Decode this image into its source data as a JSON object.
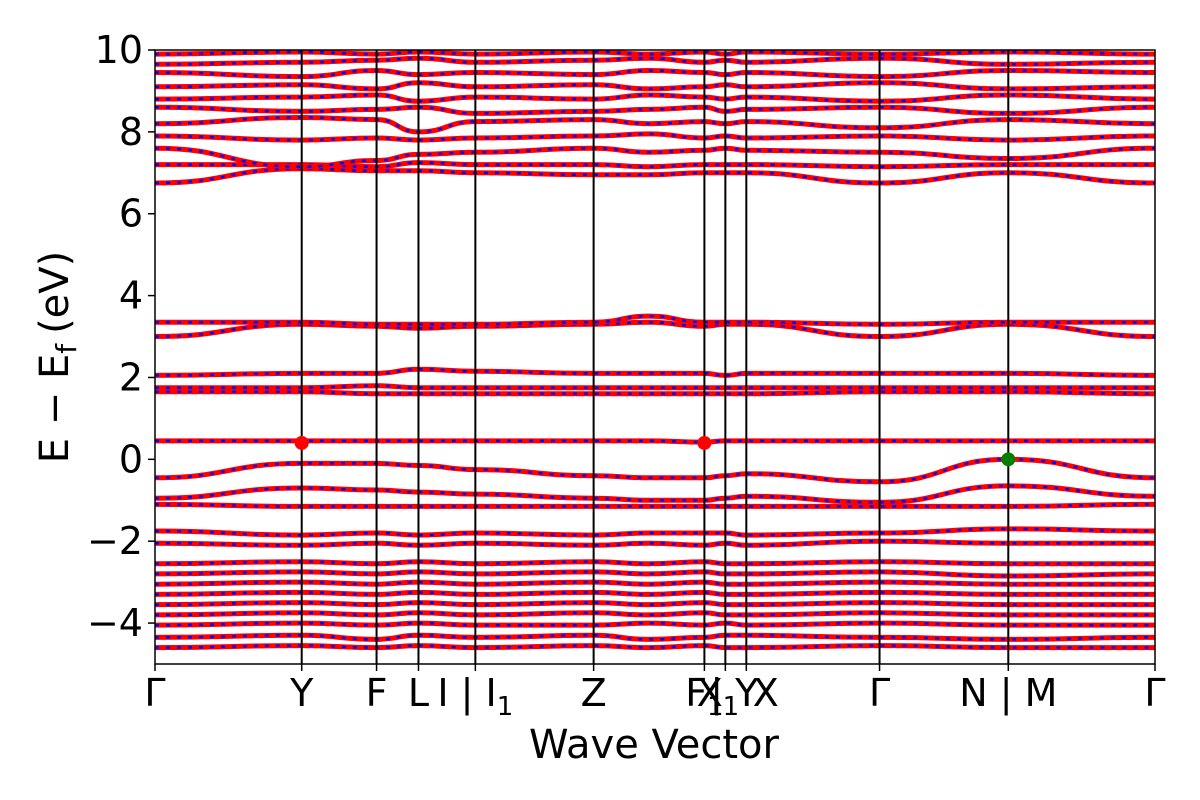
{
  "chart_data": {
    "type": "line",
    "xlabel": "Wave Vector",
    "ylabel": "E − E",
    "ylabel_sub": "f",
    "ylabel_unit": "(eV)",
    "ylim": [
      -5,
      10
    ],
    "yticks": [
      -4,
      -2,
      0,
      2,
      4,
      6,
      8,
      10
    ],
    "ytick_labels": [
      "−4",
      "−2",
      "0",
      "2",
      "4",
      "6",
      "8",
      "10"
    ],
    "xlim": [
      0,
      6.68
    ],
    "kpoints": [
      {
        "label": "Γ",
        "x": 0.0
      },
      {
        "label": "Y",
        "x": 0.98
      },
      {
        "label": "F",
        "x": 1.48
      },
      {
        "label": "L",
        "x": 1.76
      },
      {
        "label": "I | I₁",
        "x": 2.14
      },
      {
        "label": "Z",
        "x": 2.93
      },
      {
        "label": "F₁",
        "x": 3.67
      },
      {
        "label": "Y | X₁",
        "x": 3.81
      },
      {
        "label": "X",
        "x": 3.95
      },
      {
        "label": "Γ",
        "x": 4.84
      },
      {
        "label": "N | M",
        "x": 5.7
      },
      {
        "label": "Γ",
        "x": 6.68
      }
    ],
    "kpoint_tick_text": [
      {
        "text": "Γ",
        "x": 0.0
      },
      {
        "text": "Y",
        "x": 0.98
      },
      {
        "text": "F",
        "x": 1.48
      },
      {
        "text": "L",
        "x": 1.76
      },
      {
        "text": "I | I",
        "sub": "1",
        "x": 2.14
      },
      {
        "text": "Z",
        "x": 2.93
      },
      {
        "text": "F",
        "sub": "1",
        "x": 3.67
      },
      {
        "text": "X",
        "sub": "1",
        "x": 3.76
      },
      {
        "text": "| Y",
        "x": 3.87
      },
      {
        "text": "X",
        "x": 4.08
      },
      {
        "text": "Γ",
        "x": 4.84
      },
      {
        "text": "N | M",
        "x": 5.7
      },
      {
        "text": "Γ",
        "x": 6.68
      }
    ],
    "band_style": {
      "spin_up_color": "#ff0000",
      "spin_down_color": "#0000ff",
      "spin_down_dash": "dashed"
    },
    "bands": [
      {
        "x": [
          0.0,
          0.98,
          1.48,
          1.76,
          2.14,
          2.93,
          3.3,
          3.67,
          3.81,
          3.95,
          4.84,
          5.7,
          6.68
        ],
        "values": [
          -4.6,
          -4.55,
          -4.6,
          -4.55,
          -4.6,
          -4.55,
          -4.6,
          -4.55,
          -4.6,
          -4.6,
          -4.55,
          -4.6,
          -4.6
        ]
      },
      {
        "x": [
          0.0,
          0.98,
          1.48,
          1.76,
          2.14,
          2.93,
          3.3,
          3.67,
          3.81,
          3.95,
          4.84,
          5.7,
          6.68
        ],
        "values": [
          -4.35,
          -4.3,
          -4.4,
          -4.3,
          -4.35,
          -4.3,
          -4.4,
          -4.35,
          -4.3,
          -4.3,
          -4.35,
          -4.4,
          -4.35
        ]
      },
      {
        "x": [
          0.0,
          0.98,
          1.48,
          1.76,
          2.14,
          2.93,
          3.3,
          3.67,
          3.81,
          3.95,
          4.84,
          5.7,
          6.68
        ],
        "values": [
          -4.05,
          -4.0,
          -4.05,
          -4.0,
          -4.05,
          -4.05,
          -4.0,
          -4.05,
          -4.0,
          -4.05,
          -4.0,
          -4.05,
          -4.05
        ]
      },
      {
        "x": [
          0.0,
          0.98,
          1.48,
          1.76,
          2.14,
          2.93,
          3.3,
          3.67,
          3.81,
          3.95,
          4.84,
          5.7,
          6.68
        ],
        "values": [
          -3.8,
          -3.75,
          -3.8,
          -3.75,
          -3.8,
          -3.75,
          -3.8,
          -3.75,
          -3.8,
          -3.8,
          -3.75,
          -3.8,
          -3.8
        ]
      },
      {
        "x": [
          0.0,
          0.98,
          1.48,
          1.76,
          2.14,
          2.93,
          3.3,
          3.67,
          3.81,
          3.95,
          4.84,
          5.7,
          6.68
        ],
        "values": [
          -3.55,
          -3.5,
          -3.55,
          -3.5,
          -3.55,
          -3.5,
          -3.55,
          -3.5,
          -3.55,
          -3.55,
          -3.5,
          -3.55,
          -3.55
        ]
      },
      {
        "x": [
          0.0,
          0.98,
          1.48,
          1.76,
          2.14,
          2.93,
          3.3,
          3.67,
          3.81,
          3.95,
          4.84,
          5.7,
          6.68
        ],
        "values": [
          -3.3,
          -3.25,
          -3.3,
          -3.25,
          -3.3,
          -3.25,
          -3.3,
          -3.25,
          -3.3,
          -3.3,
          -3.25,
          -3.3,
          -3.3
        ]
      },
      {
        "x": [
          0.0,
          0.98,
          1.48,
          1.76,
          2.14,
          2.93,
          3.3,
          3.67,
          3.81,
          3.95,
          4.84,
          5.7,
          6.68
        ],
        "values": [
          -3.05,
          -3.0,
          -3.05,
          -3.0,
          -3.05,
          -3.0,
          -3.05,
          -3.0,
          -3.05,
          -3.05,
          -3.0,
          -3.05,
          -3.05
        ]
      },
      {
        "x": [
          0.0,
          0.98,
          1.48,
          1.76,
          2.14,
          2.93,
          3.3,
          3.67,
          3.81,
          3.95,
          4.84,
          5.7,
          6.68
        ],
        "values": [
          -2.8,
          -2.75,
          -2.8,
          -2.75,
          -2.8,
          -2.75,
          -2.8,
          -2.75,
          -2.8,
          -2.8,
          -2.75,
          -2.85,
          -2.8
        ]
      },
      {
        "x": [
          0.0,
          0.98,
          1.48,
          1.76,
          2.14,
          2.93,
          3.3,
          3.67,
          3.81,
          3.95,
          4.84,
          5.7,
          6.68
        ],
        "values": [
          -2.55,
          -2.5,
          -2.55,
          -2.5,
          -2.55,
          -2.5,
          -2.55,
          -2.5,
          -2.55,
          -2.55,
          -2.5,
          -2.55,
          -2.55
        ]
      },
      {
        "x": [
          0.0,
          0.98,
          1.48,
          1.76,
          2.14,
          2.93,
          3.3,
          3.67,
          3.81,
          3.95,
          4.84,
          5.7,
          6.68
        ],
        "values": [
          -2.05,
          -2.1,
          -2.05,
          -2.1,
          -2.05,
          -2.1,
          -2.05,
          -2.1,
          -2.05,
          -2.1,
          -2.0,
          -2.05,
          -2.05
        ]
      },
      {
        "x": [
          0.0,
          0.98,
          1.48,
          1.76,
          2.14,
          2.93,
          3.3,
          3.67,
          3.81,
          3.95,
          4.84,
          5.7,
          6.68
        ],
        "values": [
          -1.75,
          -1.85,
          -1.8,
          -1.85,
          -1.8,
          -1.85,
          -1.8,
          -1.8,
          -1.8,
          -1.85,
          -1.8,
          -1.7,
          -1.75
        ]
      },
      {
        "x": [
          0.0,
          0.98,
          1.48,
          1.76,
          2.14,
          2.93,
          3.3,
          3.67,
          3.81,
          3.95,
          4.84,
          5.7,
          6.68
        ],
        "values": [
          -1.1,
          -1.15,
          -1.15,
          -1.15,
          -1.15,
          -1.15,
          -1.15,
          -1.15,
          -1.15,
          -1.15,
          -1.15,
          -1.15,
          -1.1
        ]
      },
      {
        "x": [
          0.0,
          0.98,
          1.48,
          1.76,
          2.14,
          2.93,
          3.3,
          3.67,
          3.81,
          3.95,
          4.84,
          5.7,
          6.68
        ],
        "values": [
          -0.95,
          -0.7,
          -0.75,
          -0.8,
          -0.85,
          -0.95,
          -1.0,
          -1.0,
          -0.95,
          -0.9,
          -1.05,
          -0.65,
          -0.9
        ]
      },
      {
        "x": [
          0.0,
          0.98,
          1.48,
          1.76,
          2.14,
          2.93,
          3.3,
          3.67,
          3.81,
          3.95,
          4.84,
          5.7,
          6.68
        ],
        "values": [
          -0.45,
          -0.1,
          -0.1,
          -0.15,
          -0.25,
          -0.4,
          -0.45,
          -0.45,
          -0.4,
          -0.35,
          -0.55,
          0.0,
          -0.45
        ]
      },
      {
        "x": [
          0.0,
          0.98,
          1.48,
          1.76,
          2.14,
          2.93,
          3.3,
          3.67,
          3.81,
          3.95,
          4.84,
          5.7,
          6.68
        ],
        "values": [
          0.45,
          0.45,
          0.45,
          0.45,
          0.45,
          0.45,
          0.45,
          0.42,
          0.45,
          0.45,
          0.45,
          0.45,
          0.45
        ]
      },
      {
        "x": [
          0.0,
          0.98,
          1.48,
          1.76,
          2.14,
          2.93,
          3.3,
          3.67,
          3.81,
          3.95,
          4.84,
          5.7,
          6.68
        ],
        "values": [
          1.65,
          1.65,
          1.6,
          1.6,
          1.6,
          1.6,
          1.6,
          1.6,
          1.6,
          1.6,
          1.65,
          1.65,
          1.6
        ]
      },
      {
        "x": [
          0.0,
          0.98,
          1.48,
          1.76,
          2.14,
          2.93,
          3.3,
          3.67,
          3.81,
          3.95,
          4.84,
          5.7,
          6.68
        ],
        "values": [
          1.75,
          1.75,
          1.8,
          1.75,
          1.75,
          1.75,
          1.75,
          1.75,
          1.75,
          1.75,
          1.75,
          1.75,
          1.75
        ]
      },
      {
        "x": [
          0.0,
          0.98,
          1.48,
          1.76,
          2.14,
          2.93,
          3.3,
          3.67,
          3.81,
          3.95,
          4.84,
          5.7,
          6.68
        ],
        "values": [
          2.05,
          2.1,
          2.1,
          2.2,
          2.15,
          2.1,
          2.1,
          2.1,
          2.05,
          2.1,
          2.1,
          2.1,
          2.05
        ]
      },
      {
        "x": [
          0.0,
          0.98,
          1.48,
          1.76,
          2.14,
          2.93,
          3.3,
          3.67,
          3.81,
          3.95,
          4.84,
          5.7,
          6.68
        ],
        "values": [
          3.0,
          3.3,
          3.25,
          3.2,
          3.25,
          3.3,
          3.35,
          3.25,
          3.3,
          3.3,
          3.0,
          3.3,
          3.0
        ]
      },
      {
        "x": [
          0.0,
          0.98,
          1.48,
          1.76,
          2.14,
          2.93,
          3.3,
          3.67,
          3.81,
          3.95,
          4.84,
          5.7,
          6.68
        ],
        "values": [
          3.35,
          3.35,
          3.3,
          3.3,
          3.3,
          3.35,
          3.5,
          3.35,
          3.35,
          3.35,
          3.3,
          3.35,
          3.35
        ]
      },
      {
        "x": [
          0.0,
          0.98,
          1.48,
          1.76,
          2.14,
          2.93,
          3.3,
          3.67,
          3.81,
          3.95,
          4.84,
          5.7,
          6.68
        ],
        "values": [
          6.75,
          7.1,
          7.05,
          7.05,
          7.0,
          6.95,
          6.95,
          7.0,
          7.0,
          7.0,
          6.75,
          7.0,
          6.75
        ]
      },
      {
        "x": [
          0.0,
          0.98,
          1.48,
          1.76,
          2.14,
          2.93,
          3.3,
          3.67,
          3.81,
          3.95,
          4.84,
          5.7,
          6.68
        ],
        "values": [
          7.2,
          7.2,
          7.15,
          7.25,
          7.2,
          7.2,
          7.15,
          7.2,
          7.2,
          7.2,
          7.15,
          7.2,
          7.2
        ]
      },
      {
        "x": [
          0.0,
          0.98,
          1.48,
          1.76,
          2.14,
          2.93,
          3.3,
          3.67,
          3.81,
          3.95,
          4.84,
          5.7,
          6.68
        ],
        "values": [
          7.6,
          7.15,
          7.3,
          7.45,
          7.5,
          7.6,
          7.5,
          7.55,
          7.6,
          7.55,
          7.5,
          7.35,
          7.6
        ]
      },
      {
        "x": [
          0.0,
          0.98,
          1.48,
          1.76,
          2.14,
          2.93,
          3.3,
          3.67,
          3.81,
          3.95,
          4.84,
          5.7,
          6.68
        ],
        "values": [
          7.9,
          7.8,
          7.85,
          7.8,
          7.85,
          7.9,
          7.95,
          7.85,
          7.9,
          7.85,
          7.9,
          7.8,
          7.9
        ]
      },
      {
        "x": [
          0.0,
          0.98,
          1.48,
          1.76,
          2.14,
          2.93,
          3.3,
          3.67,
          3.81,
          3.95,
          4.84,
          5.7,
          6.68
        ],
        "values": [
          8.2,
          8.35,
          8.3,
          8.0,
          8.25,
          8.3,
          8.2,
          8.25,
          8.2,
          8.25,
          8.1,
          8.3,
          8.2
        ]
      },
      {
        "x": [
          0.0,
          0.98,
          1.48,
          1.76,
          2.14,
          2.93,
          3.3,
          3.67,
          3.81,
          3.95,
          4.84,
          5.7,
          6.68
        ],
        "values": [
          8.6,
          8.5,
          8.55,
          8.6,
          8.45,
          8.5,
          8.55,
          8.6,
          8.5,
          8.55,
          8.6,
          8.45,
          8.6
        ]
      },
      {
        "x": [
          0.0,
          0.98,
          1.48,
          1.76,
          2.14,
          2.93,
          3.3,
          3.67,
          3.81,
          3.95,
          4.84,
          5.7,
          6.68
        ],
        "values": [
          8.8,
          8.85,
          8.9,
          8.75,
          8.85,
          8.8,
          8.9,
          8.85,
          8.8,
          8.85,
          8.75,
          8.9,
          8.8
        ]
      },
      {
        "x": [
          0.0,
          0.98,
          1.48,
          1.76,
          2.14,
          2.93,
          3.3,
          3.67,
          3.81,
          3.95,
          4.84,
          5.7,
          6.68
        ],
        "values": [
          9.1,
          9.15,
          9.05,
          9.2,
          9.1,
          9.15,
          9.05,
          9.1,
          9.15,
          9.1,
          9.2,
          9.05,
          9.1
        ]
      },
      {
        "x": [
          0.0,
          0.98,
          1.48,
          1.76,
          2.14,
          2.93,
          3.3,
          3.67,
          3.81,
          3.95,
          4.84,
          5.7,
          6.68
        ],
        "values": [
          9.45,
          9.35,
          9.5,
          9.4,
          9.45,
          9.4,
          9.5,
          9.45,
          9.4,
          9.45,
          9.35,
          9.5,
          9.45
        ]
      },
      {
        "x": [
          0.0,
          0.98,
          1.48,
          1.76,
          2.14,
          2.93,
          3.3,
          3.67,
          3.81,
          3.95,
          4.84,
          5.7,
          6.68
        ],
        "values": [
          9.65,
          9.7,
          9.75,
          9.8,
          9.7,
          9.75,
          9.8,
          9.7,
          9.75,
          9.7,
          9.8,
          9.65,
          9.7
        ]
      },
      {
        "x": [
          0.0,
          0.98,
          1.48,
          1.76,
          2.14,
          2.93,
          3.3,
          3.67,
          3.81,
          3.95,
          4.84,
          5.7,
          6.68
        ],
        "values": [
          9.9,
          9.95,
          9.9,
          9.95,
          9.9,
          9.95,
          9.9,
          9.95,
          9.9,
          9.95,
          9.9,
          9.95,
          9.9
        ]
      }
    ],
    "markers": [
      {
        "x": 0.98,
        "y": 0.4,
        "color": "#ff0000"
      },
      {
        "x": 3.67,
        "y": 0.4,
        "color": "#ff0000"
      },
      {
        "x": 5.7,
        "y": 0.0,
        "color": "#008000"
      }
    ]
  }
}
